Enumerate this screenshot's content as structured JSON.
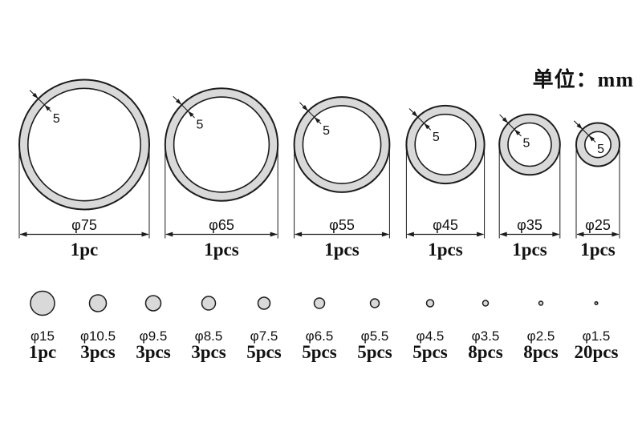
{
  "title": {
    "unit_label": "单位：mm"
  },
  "rings": [
    {
      "size_mm": 75,
      "wall_mm": 5,
      "wall_label": "5",
      "diameter_label": "φ75",
      "qty_label": "1pc"
    },
    {
      "size_mm": 65,
      "wall_mm": 5,
      "wall_label": "5",
      "diameter_label": "φ65",
      "qty_label": "1pcs"
    },
    {
      "size_mm": 55,
      "wall_mm": 5,
      "wall_label": "5",
      "diameter_label": "φ55",
      "qty_label": "1pcs"
    },
    {
      "size_mm": 45,
      "wall_mm": 5,
      "wall_label": "5",
      "diameter_label": "φ45",
      "qty_label": "1pcs"
    },
    {
      "size_mm": 35,
      "wall_mm": 5,
      "wall_label": "5",
      "diameter_label": "φ35",
      "qty_label": "1pcs"
    },
    {
      "size_mm": 25,
      "wall_mm": 5,
      "wall_label": "5",
      "diameter_label": "φ25",
      "qty_label": "1pcs"
    }
  ],
  "dots": [
    {
      "size_mm": 15,
      "diameter_label": "φ15",
      "qty_label": "1pc"
    },
    {
      "size_mm": 10.5,
      "diameter_label": "φ10.5",
      "qty_label": "3pcs"
    },
    {
      "size_mm": 9.5,
      "diameter_label": "φ9.5",
      "qty_label": "3pcs"
    },
    {
      "size_mm": 8.5,
      "diameter_label": "φ8.5",
      "qty_label": "3pcs"
    },
    {
      "size_mm": 7.5,
      "diameter_label": "φ7.5",
      "qty_label": "5pcs"
    },
    {
      "size_mm": 6.5,
      "diameter_label": "φ6.5",
      "qty_label": "5pcs"
    },
    {
      "size_mm": 5.5,
      "diameter_label": "φ5.5",
      "qty_label": "5pcs"
    },
    {
      "size_mm": 4.5,
      "diameter_label": "φ4.5",
      "qty_label": "5pcs"
    },
    {
      "size_mm": 3.5,
      "diameter_label": "φ3.5",
      "qty_label": "8pcs"
    },
    {
      "size_mm": 2.5,
      "diameter_label": "φ2.5",
      "qty_label": "8pcs"
    },
    {
      "size_mm": 1.5,
      "diameter_label": "φ1.5",
      "qty_label": "20pcs"
    }
  ],
  "colors": {
    "ring_fill": "#d9d9d9",
    "stroke": "#1c1c1c",
    "background": "#ffffff"
  }
}
